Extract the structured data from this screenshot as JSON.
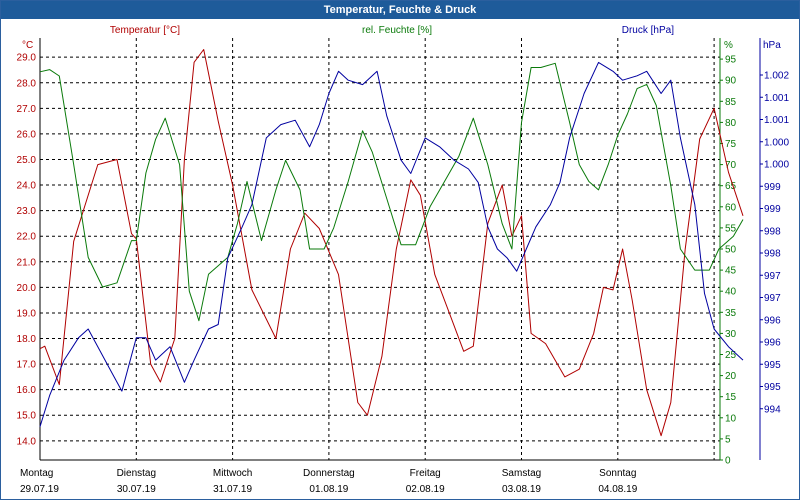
{
  "window": {
    "title": "Temperatur, Feuchte & Druck"
  },
  "colors": {
    "temp": "#b00000",
    "hum": "#0a7a0a",
    "pres": "#0000a0",
    "grid": "#000000"
  },
  "headers": {
    "temp_unit": "°C",
    "temp_title": "Temperatur [°C]",
    "hum_title": "rel. Feuchte [%]",
    "hum_unit": "%",
    "pres_title": "Druck [hPa]",
    "pres_unit": "hPa"
  },
  "chart_data": {
    "type": "line",
    "x_labels": [
      {
        "day": "Montag",
        "date": "29.07.19"
      },
      {
        "day": "Dienstag",
        "date": "30.07.19"
      },
      {
        "day": "Mittwoch",
        "date": "31.07.19"
      },
      {
        "day": "Donnerstag",
        "date": "01.08.19"
      },
      {
        "day": "Freitag",
        "date": "02.08.19"
      },
      {
        "day": "Samstag",
        "date": "03.08.19"
      },
      {
        "day": "Sonntag",
        "date": "04.08.19"
      }
    ],
    "grid": true,
    "temp_ticks": [
      "29.0",
      "28.0",
      "27.0",
      "26.0",
      "25.0",
      "24.0",
      "23.0",
      "22.0",
      "21.0",
      "20.0",
      "19.0",
      "18.0",
      "17.0",
      "16.0",
      "15.0",
      "14.0"
    ],
    "hum_ticks": [
      "95",
      "90",
      "85",
      "80",
      "75",
      "70",
      "65",
      "60",
      "55",
      "50",
      "45",
      "40",
      "35",
      "30",
      "25",
      "20",
      "15",
      "10",
      "5",
      "0"
    ],
    "pres_ticks": [
      "1.002",
      "1.001",
      "1.001",
      "1.000",
      "1.000",
      "999",
      "999",
      "998",
      "998",
      "997",
      "997",
      "996",
      "996",
      "995",
      "995",
      "994"
    ],
    "series": [
      {
        "name": "Temperatur [°C]",
        "color": "#b00000",
        "axis": "temp",
        "range": [
          13.25,
          29.75
        ],
        "points": [
          [
            0,
            17.6
          ],
          [
            0.05,
            17.7
          ],
          [
            0.2,
            16.2
          ],
          [
            0.35,
            21.8
          ],
          [
            0.6,
            24.8
          ],
          [
            0.8,
            25.0
          ],
          [
            0.95,
            22.1
          ],
          [
            1.0,
            21.9
          ],
          [
            1.15,
            17.0
          ],
          [
            1.25,
            16.3
          ],
          [
            1.4,
            18.0
          ],
          [
            1.5,
            25.0
          ],
          [
            1.6,
            28.8
          ],
          [
            1.7,
            29.3
          ],
          [
            1.85,
            26.5
          ],
          [
            2.0,
            24.0
          ],
          [
            2.2,
            19.9
          ],
          [
            2.45,
            18.0
          ],
          [
            2.6,
            21.5
          ],
          [
            2.75,
            22.9
          ],
          [
            2.9,
            22.3
          ],
          [
            3.1,
            20.5
          ],
          [
            3.3,
            15.5
          ],
          [
            3.4,
            15.0
          ],
          [
            3.55,
            17.3
          ],
          [
            3.7,
            21.5
          ],
          [
            3.85,
            24.2
          ],
          [
            3.95,
            23.6
          ],
          [
            4.1,
            20.5
          ],
          [
            4.25,
            19.0
          ],
          [
            4.4,
            17.5
          ],
          [
            4.5,
            17.7
          ],
          [
            4.65,
            22.5
          ],
          [
            4.8,
            24.0
          ],
          [
            4.9,
            22.0
          ],
          [
            5.0,
            22.8
          ],
          [
            5.1,
            18.2
          ],
          [
            5.25,
            17.8
          ],
          [
            5.45,
            16.5
          ],
          [
            5.6,
            16.8
          ],
          [
            5.75,
            18.2
          ],
          [
            5.85,
            20.0
          ],
          [
            5.95,
            19.9
          ],
          [
            6.05,
            21.5
          ],
          [
            6.15,
            19.5
          ],
          [
            6.3,
            16.0
          ],
          [
            6.45,
            14.2
          ],
          [
            6.55,
            15.5
          ],
          [
            6.7,
            21.5
          ],
          [
            6.85,
            25.8
          ],
          [
            7.0,
            27.0
          ],
          [
            7.15,
            24.5
          ],
          [
            7.3,
            22.8
          ]
        ]
      },
      {
        "name": "rel. Feuchte [%]",
        "color": "#0a7a0a",
        "axis": "hum",
        "range": [
          0,
          100
        ],
        "points": [
          [
            0,
            92
          ],
          [
            0.1,
            92.5
          ],
          [
            0.2,
            91
          ],
          [
            0.35,
            70
          ],
          [
            0.5,
            48
          ],
          [
            0.65,
            41
          ],
          [
            0.8,
            42
          ],
          [
            0.95,
            52
          ],
          [
            1.0,
            52
          ],
          [
            1.1,
            68
          ],
          [
            1.2,
            76
          ],
          [
            1.3,
            81
          ],
          [
            1.45,
            70
          ],
          [
            1.55,
            40
          ],
          [
            1.65,
            33
          ],
          [
            1.75,
            44
          ],
          [
            1.95,
            48
          ],
          [
            2.05,
            56
          ],
          [
            2.15,
            66
          ],
          [
            2.3,
            52
          ],
          [
            2.45,
            64
          ],
          [
            2.55,
            71
          ],
          [
            2.7,
            64
          ],
          [
            2.8,
            50
          ],
          [
            2.95,
            50
          ],
          [
            3.05,
            55
          ],
          [
            3.2,
            66
          ],
          [
            3.35,
            78
          ],
          [
            3.45,
            73
          ],
          [
            3.6,
            62
          ],
          [
            3.75,
            51
          ],
          [
            3.9,
            51
          ],
          [
            4.05,
            60
          ],
          [
            4.2,
            66
          ],
          [
            4.35,
            72
          ],
          [
            4.5,
            81
          ],
          [
            4.65,
            70
          ],
          [
            4.8,
            56
          ],
          [
            4.9,
            50
          ],
          [
            5.0,
            80
          ],
          [
            5.1,
            93
          ],
          [
            5.2,
            93
          ],
          [
            5.35,
            94
          ],
          [
            5.5,
            80
          ],
          [
            5.6,
            70
          ],
          [
            5.7,
            66
          ],
          [
            5.8,
            64
          ],
          [
            5.9,
            70
          ],
          [
            6.0,
            77
          ],
          [
            6.1,
            82
          ],
          [
            6.2,
            88
          ],
          [
            6.3,
            89
          ],
          [
            6.4,
            84
          ],
          [
            6.55,
            65
          ],
          [
            6.65,
            50
          ],
          [
            6.8,
            45
          ],
          [
            6.95,
            45
          ],
          [
            7.05,
            50
          ],
          [
            7.2,
            53
          ],
          [
            7.3,
            57
          ]
        ]
      },
      {
        "name": "Druck [hPa]",
        "color": "#0000a0",
        "axis": "pres",
        "range": [
          993.25,
          1002.75
        ],
        "points": [
          [
            0,
            994.0
          ],
          [
            0.1,
            994.7
          ],
          [
            0.25,
            995.5
          ],
          [
            0.4,
            996.0
          ],
          [
            0.5,
            996.2
          ],
          [
            0.65,
            995.6
          ],
          [
            0.75,
            995.2
          ],
          [
            0.85,
            994.8
          ],
          [
            1.0,
            996.0
          ],
          [
            1.1,
            996.0
          ],
          [
            1.2,
            995.5
          ],
          [
            1.35,
            995.8
          ],
          [
            1.5,
            995.0
          ],
          [
            1.6,
            995.5
          ],
          [
            1.75,
            996.2
          ],
          [
            1.85,
            996.3
          ],
          [
            1.95,
            997.8
          ],
          [
            2.1,
            998.5
          ],
          [
            2.2,
            999.0
          ],
          [
            2.35,
            1000.5
          ],
          [
            2.5,
            1000.8
          ],
          [
            2.65,
            1000.9
          ],
          [
            2.8,
            1000.3
          ],
          [
            2.9,
            1000.8
          ],
          [
            3.0,
            1001.5
          ],
          [
            3.1,
            1002.0
          ],
          [
            3.2,
            1001.8
          ],
          [
            3.35,
            1001.7
          ],
          [
            3.5,
            1002.0
          ],
          [
            3.6,
            1001.0
          ],
          [
            3.75,
            1000.0
          ],
          [
            3.85,
            999.7
          ],
          [
            4.0,
            1000.5
          ],
          [
            4.15,
            1000.3
          ],
          [
            4.3,
            1000.0
          ],
          [
            4.45,
            999.8
          ],
          [
            4.55,
            999.5
          ],
          [
            4.65,
            998.5
          ],
          [
            4.75,
            998.0
          ],
          [
            4.85,
            997.8
          ],
          [
            4.95,
            997.5
          ],
          [
            5.05,
            998.0
          ],
          [
            5.15,
            998.5
          ],
          [
            5.3,
            999.0
          ],
          [
            5.4,
            999.5
          ],
          [
            5.5,
            1000.5
          ],
          [
            5.65,
            1001.5
          ],
          [
            5.8,
            1002.2
          ],
          [
            5.95,
            1002.0
          ],
          [
            6.05,
            1001.8
          ],
          [
            6.2,
            1001.9
          ],
          [
            6.3,
            1002.0
          ],
          [
            6.45,
            1001.5
          ],
          [
            6.55,
            1001.8
          ],
          [
            6.65,
            1000.5
          ],
          [
            6.8,
            999.0
          ],
          [
            6.9,
            997.0
          ],
          [
            7.0,
            996.2
          ],
          [
            7.15,
            995.8
          ],
          [
            7.3,
            995.5
          ]
        ]
      }
    ]
  }
}
